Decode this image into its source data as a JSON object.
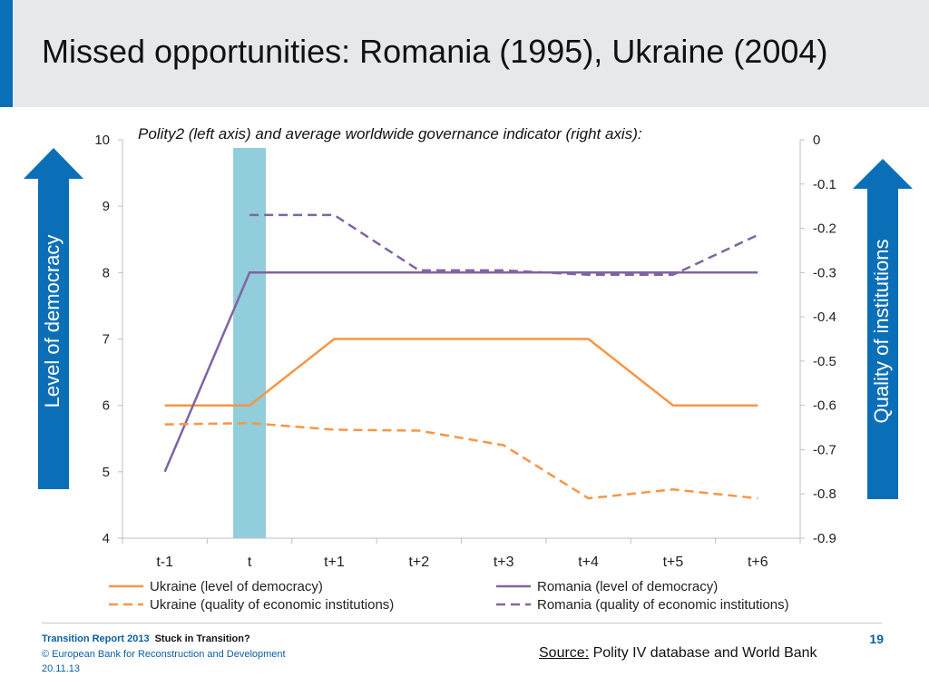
{
  "slide": {
    "title": "Missed opportunities: Romania (1995), Ukraine (2004)",
    "accent_color": "#0b6fb8",
    "left_arrow_label": "Level of democracy",
    "right_arrow_label": "Quality of institutions",
    "arrow_icons": [
      "up-arrow-icon",
      "up-arrow-icon"
    ],
    "footer": {
      "report": "Transition Report 2013",
      "report_sub": "Stuck in Transition?",
      "copyright": "© European Bank for Reconstruction and Development",
      "date": "20.11.13"
    },
    "page_number": "19",
    "source_label": "Source:",
    "source_text": "Polity IV database and World Bank"
  },
  "chart_data": {
    "type": "line",
    "title": "Polity2 (left axis) and average worldwide governance indicator (right axis):",
    "categories": [
      "t-1",
      "t",
      "t+1",
      "t+2",
      "t+3",
      "t+4",
      "t+5",
      "t+6"
    ],
    "highlight_category": "t",
    "highlight_color": "#92cddc",
    "y_left": {
      "min": 4,
      "max": 10,
      "ticks": [
        "4",
        "5",
        "6",
        "7",
        "8",
        "9",
        "10"
      ]
    },
    "y_right": {
      "min": -0.9,
      "max": 0,
      "ticks": [
        "0",
        "-0.1",
        "-0.2",
        "-0.3",
        "-0.4",
        "-0.5",
        "-0.6",
        "-0.7",
        "-0.8",
        "-0.9"
      ]
    },
    "grid": false,
    "legend_position": "bottom",
    "series": [
      {
        "name": "Ukraine (level of democracy)",
        "axis": "left",
        "color": "#f79646",
        "dashed": false,
        "values": [
          6,
          6,
          7,
          7,
          7,
          7,
          6,
          6
        ]
      },
      {
        "name": "Romania (level of democracy)",
        "axis": "left",
        "color": "#8064a2",
        "dashed": false,
        "values": [
          5,
          8,
          8,
          8,
          8,
          8,
          8,
          8
        ]
      },
      {
        "name": "Ukraine (quality of economic institutions)",
        "axis": "right",
        "color": "#f79646",
        "dashed": true,
        "values": [
          -0.643,
          -0.64,
          -0.655,
          -0.657,
          -0.69,
          -0.81,
          -0.79,
          -0.81
        ]
      },
      {
        "name": "Romania (quality of economic institutions)",
        "axis": "right",
        "color": "#8064a2",
        "dashed": true,
        "values": [
          null,
          -0.17,
          -0.17,
          -0.295,
          -0.295,
          -0.305,
          -0.305,
          -0.215
        ]
      }
    ]
  }
}
